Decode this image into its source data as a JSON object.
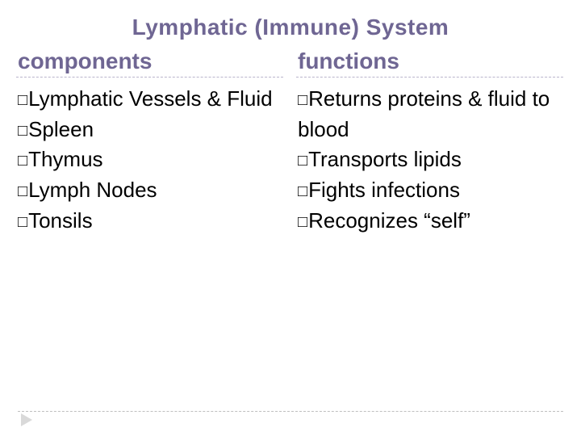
{
  "title": "Lymphatic (Immune) System",
  "title_color": "#6f6693",
  "columns": {
    "left": {
      "heading": "components",
      "heading_color": "#6f6693",
      "dash_color": "#b9b4cc",
      "items": [
        "Lymphatic Vessels & Fluid",
        "Spleen",
        "Thymus",
        "Lymph Nodes",
        "Tonsils"
      ]
    },
    "right": {
      "heading": "functions",
      "heading_color": "#6f6693",
      "dash_color": "#b9b4cc",
      "items": [
        "Returns proteins & fluid to blood",
        "Transports lipids",
        "Fights infections",
        "Recognizes “self”"
      ]
    }
  },
  "bullet_glyph": "□",
  "bullet_color": "#000000",
  "background_color": "#ffffff",
  "footer_dash_color": "#bfbfbf",
  "arrow_color": "#d9d9d9"
}
